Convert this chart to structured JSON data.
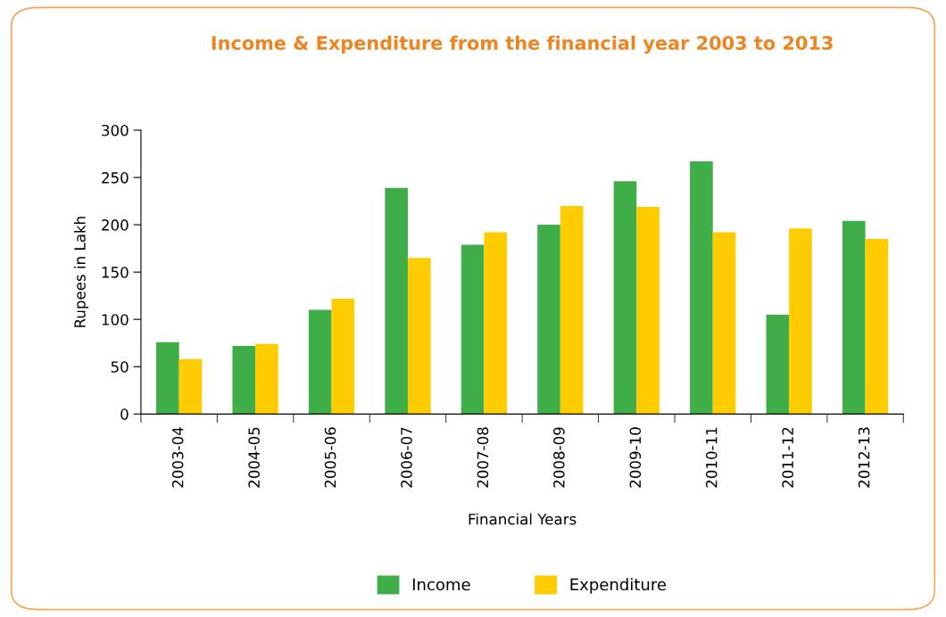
{
  "chart_data": {
    "type": "bar",
    "title": "Income & Expenditure from the financial year 2003 to 2013",
    "xlabel": "Financial Years",
    "ylabel": "Rupees in Lakh",
    "categories": [
      "2003-04",
      "2004-05",
      "2005-06",
      "2006-07",
      "2007-08",
      "2008-09",
      "2009-10",
      "2010-11",
      "2011-12",
      "2012-13"
    ],
    "series": [
      {
        "name": "Income",
        "color": "#3fae49",
        "values": [
          76,
          72,
          110,
          239,
          179,
          200,
          246,
          267,
          105,
          204
        ]
      },
      {
        "name": "Expenditure",
        "color": "#ffcc00",
        "values": [
          58,
          74,
          122,
          165,
          192,
          220,
          219,
          192,
          196,
          185
        ]
      }
    ],
    "ylim": [
      0,
      300
    ],
    "yticks": [
      0,
      50,
      100,
      150,
      200,
      250,
      300
    ],
    "grid": false,
    "legend": "bottom"
  }
}
